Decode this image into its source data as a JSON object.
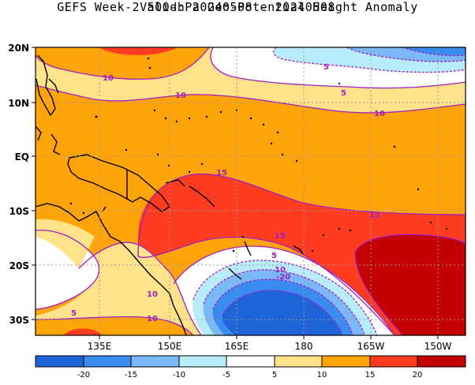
{
  "title": {
    "line1": "GEFS Week-2 500-hPa Geo-Potential Height Anomaly",
    "line2": "Valid: 20240508 - 20240508"
  },
  "map": {
    "lat_labels": [
      "20N",
      "10N",
      "EQ",
      "10S",
      "20S",
      "30S"
    ],
    "lon_labels": [
      "135E",
      "150E",
      "165E",
      "180",
      "165W",
      "150W"
    ],
    "contour_labels": [
      "10",
      "10",
      "5",
      "5",
      "10",
      "15",
      "15",
      "15",
      "5",
      "10",
      "-20",
      "10",
      "5",
      "10"
    ]
  },
  "colorbar": {
    "labels": [
      "-20",
      "-15",
      "-10",
      "-5",
      "5",
      "10",
      "15",
      "20"
    ],
    "colors": [
      "#1f64d8",
      "#3b8cf0",
      "#7bb8f8",
      "#b8ecfb",
      "#ffffff",
      "#ffe28a",
      "#ffa408",
      "#ff3c1f",
      "#c50000"
    ]
  },
  "colors": {
    "contour": "#a020c0",
    "coast": "#000000",
    "grid": "#9a9a9a"
  }
}
